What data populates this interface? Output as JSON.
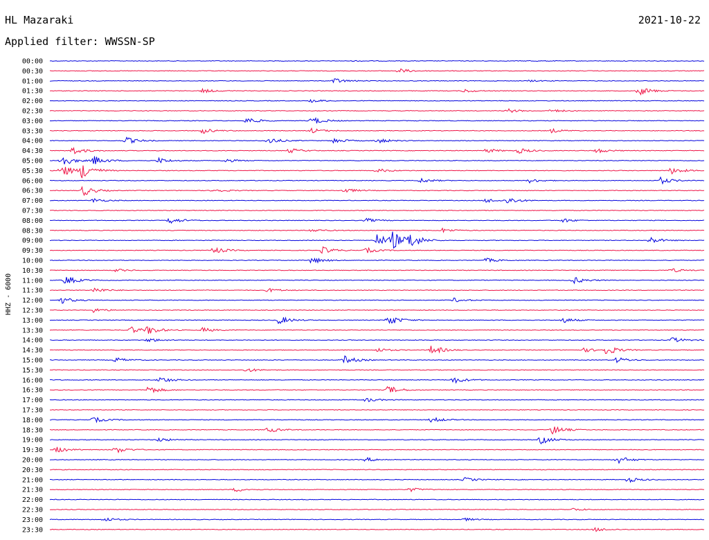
{
  "header": {
    "station": "HL Mazaraki",
    "date": "2021-10-22",
    "filter_label": "Applied filter: WWSSN-SP"
  },
  "colors": {
    "odd_trace": "#0000dd",
    "even_trace": "#ee1144",
    "text": "#000000"
  },
  "chart_data": {
    "type": "line",
    "title": "",
    "xlabel": "",
    "ylabel": "HHZ - 6000",
    "grid": false,
    "legend": "none",
    "row_interval_minutes": 30,
    "row_labels": [
      "00:00",
      "00:30",
      "01:00",
      "01:30",
      "02:00",
      "02:30",
      "03:00",
      "03:30",
      "04:00",
      "04:30",
      "05:00",
      "05:30",
      "06:00",
      "06:30",
      "07:00",
      "07:30",
      "08:00",
      "08:30",
      "09:00",
      "09:30",
      "10:00",
      "10:30",
      "11:00",
      "11:30",
      "12:00",
      "12:30",
      "13:00",
      "13:30",
      "14:00",
      "14:30",
      "15:00",
      "15:30",
      "16:00",
      "16:30",
      "17:00",
      "17:30",
      "18:00",
      "18:30",
      "19:00",
      "19:30",
      "20:00",
      "20:30",
      "21:00",
      "21:30",
      "22:00",
      "22:30",
      "23:00",
      "23:30"
    ],
    "series_colors": [
      "odd_trace",
      "even_trace"
    ],
    "events": [
      {
        "row": 0,
        "minute": 14,
        "amplitude": 0.6
      },
      {
        "row": 0,
        "minute": 22,
        "amplitude": 0.5
      },
      {
        "row": 1,
        "minute": 16,
        "amplitude": 3.5
      },
      {
        "row": 2,
        "minute": 13,
        "amplitude": 4
      },
      {
        "row": 2,
        "minute": 22,
        "amplitude": 1.2
      },
      {
        "row": 3,
        "minute": 7,
        "amplitude": 3
      },
      {
        "row": 3,
        "minute": 27,
        "amplitude": 7
      },
      {
        "row": 3,
        "minute": 19,
        "amplitude": 2.5
      },
      {
        "row": 4,
        "minute": 12,
        "amplitude": 2.5
      },
      {
        "row": 5,
        "minute": 21,
        "amplitude": 3
      },
      {
        "row": 5,
        "minute": 23,
        "amplitude": 2.5
      },
      {
        "row": 6,
        "minute": 9,
        "amplitude": 5
      },
      {
        "row": 6,
        "minute": 12,
        "amplitude": 6
      },
      {
        "row": 7,
        "minute": 7,
        "amplitude": 4
      },
      {
        "row": 7,
        "minute": 12,
        "amplitude": 3.5
      },
      {
        "row": 7,
        "minute": 23,
        "amplitude": 3
      },
      {
        "row": 8,
        "minute": 3.5,
        "amplitude": 5
      },
      {
        "row": 8,
        "minute": 10,
        "amplitude": 5
      },
      {
        "row": 8,
        "minute": 13,
        "amplitude": 4
      },
      {
        "row": 8,
        "minute": 15,
        "amplitude": 4
      },
      {
        "row": 9,
        "minute": 1,
        "amplitude": 6
      },
      {
        "row": 9,
        "minute": 11,
        "amplitude": 3.5
      },
      {
        "row": 9,
        "minute": 20,
        "amplitude": 3
      },
      {
        "row": 9,
        "minute": 21.5,
        "amplitude": 4
      },
      {
        "row": 9,
        "minute": 25,
        "amplitude": 4
      },
      {
        "row": 10,
        "minute": 0.5,
        "amplitude": 9
      },
      {
        "row": 10,
        "minute": 2,
        "amplitude": 7
      },
      {
        "row": 10,
        "minute": 5,
        "amplitude": 4
      },
      {
        "row": 10,
        "minute": 8,
        "amplitude": 3
      },
      {
        "row": 11,
        "minute": 0.5,
        "amplitude": 10
      },
      {
        "row": 11,
        "minute": 1.5,
        "amplitude": 12
      },
      {
        "row": 11,
        "minute": 15,
        "amplitude": 3
      },
      {
        "row": 11,
        "minute": 28.5,
        "amplitude": 5
      },
      {
        "row": 12,
        "minute": 17,
        "amplitude": 3.5
      },
      {
        "row": 12,
        "minute": 22,
        "amplitude": 3
      },
      {
        "row": 12,
        "minute": 28,
        "amplitude": 5
      },
      {
        "row": 13,
        "minute": 1.5,
        "amplitude": 8
      },
      {
        "row": 13,
        "minute": 7.5,
        "amplitude": 3
      },
      {
        "row": 13,
        "minute": 13.5,
        "amplitude": 3.5
      },
      {
        "row": 14,
        "minute": 2,
        "amplitude": 3
      },
      {
        "row": 14,
        "minute": 20,
        "amplitude": 3
      },
      {
        "row": 14,
        "minute": 21,
        "amplitude": 5
      },
      {
        "row": 16,
        "minute": 5.5,
        "amplitude": 5
      },
      {
        "row": 16,
        "minute": 14.5,
        "amplitude": 3
      },
      {
        "row": 16,
        "minute": 23.5,
        "amplitude": 3
      },
      {
        "row": 17,
        "minute": 12,
        "amplitude": 2.5
      },
      {
        "row": 17,
        "minute": 18,
        "amplitude": 3
      },
      {
        "row": 18,
        "minute": 15,
        "amplitude": 9
      },
      {
        "row": 18,
        "minute": 15.7,
        "amplitude": 12
      },
      {
        "row": 18,
        "minute": 16.5,
        "amplitude": 11
      },
      {
        "row": 18,
        "minute": 27.5,
        "amplitude": 5
      },
      {
        "row": 19,
        "minute": 7.5,
        "amplitude": 5
      },
      {
        "row": 19,
        "minute": 12.5,
        "amplitude": 5
      },
      {
        "row": 19,
        "minute": 14.5,
        "amplitude": 4
      },
      {
        "row": 20,
        "minute": 12,
        "amplitude": 5
      },
      {
        "row": 20,
        "minute": 20,
        "amplitude": 3
      },
      {
        "row": 21,
        "minute": 3,
        "amplitude": 2
      },
      {
        "row": 21,
        "minute": 28.5,
        "amplitude": 3
      },
      {
        "row": 22,
        "minute": 0.7,
        "amplitude": 7
      },
      {
        "row": 22,
        "minute": 24,
        "amplitude": 5
      },
      {
        "row": 23,
        "minute": 2,
        "amplitude": 4
      },
      {
        "row": 23,
        "minute": 10,
        "amplitude": 3
      },
      {
        "row": 24,
        "minute": 0.5,
        "amplitude": 5
      },
      {
        "row": 24,
        "minute": 18.5,
        "amplitude": 3
      },
      {
        "row": 25,
        "minute": 2,
        "amplitude": 3
      },
      {
        "row": 26,
        "minute": 10.5,
        "amplitude": 6
      },
      {
        "row": 26,
        "minute": 15.5,
        "amplitude": 8
      },
      {
        "row": 26,
        "minute": 23.5,
        "amplitude": 4
      },
      {
        "row": 27,
        "minute": 3.7,
        "amplitude": 5
      },
      {
        "row": 27,
        "minute": 4.5,
        "amplitude": 6
      },
      {
        "row": 27,
        "minute": 7,
        "amplitude": 3.5
      },
      {
        "row": 28,
        "minute": 4.5,
        "amplitude": 3
      },
      {
        "row": 28,
        "minute": 28.5,
        "amplitude": 4
      },
      {
        "row": 29,
        "minute": 15,
        "amplitude": 3
      },
      {
        "row": 29,
        "minute": 17.5,
        "amplitude": 7
      },
      {
        "row": 29,
        "minute": 24.5,
        "amplitude": 3
      },
      {
        "row": 29,
        "minute": 25.5,
        "amplitude": 7
      },
      {
        "row": 30,
        "minute": 3,
        "amplitude": 3.5
      },
      {
        "row": 30,
        "minute": 13.5,
        "amplitude": 6
      },
      {
        "row": 30,
        "minute": 26,
        "amplitude": 4
      },
      {
        "row": 31,
        "minute": 9,
        "amplitude": 3
      },
      {
        "row": 32,
        "minute": 5,
        "amplitude": 5
      },
      {
        "row": 32,
        "minute": 18.5,
        "amplitude": 5
      },
      {
        "row": 33,
        "minute": 4.5,
        "amplitude": 6
      },
      {
        "row": 33,
        "minute": 15.5,
        "amplitude": 6
      },
      {
        "row": 34,
        "minute": 14.5,
        "amplitude": 3
      },
      {
        "row": 36,
        "minute": 2,
        "amplitude": 4
      },
      {
        "row": 36,
        "minute": 17.5,
        "amplitude": 4
      },
      {
        "row": 37,
        "minute": 23,
        "amplitude": 7
      },
      {
        "row": 37,
        "minute": 10,
        "amplitude": 4
      },
      {
        "row": 38,
        "minute": 22.5,
        "amplitude": 6
      },
      {
        "row": 38,
        "minute": 5,
        "amplitude": 3
      },
      {
        "row": 39,
        "minute": 0.3,
        "amplitude": 4
      },
      {
        "row": 39,
        "minute": 3,
        "amplitude": 5
      },
      {
        "row": 40,
        "minute": 14.5,
        "amplitude": 3
      },
      {
        "row": 40,
        "minute": 26,
        "amplitude": 6
      },
      {
        "row": 42,
        "minute": 19,
        "amplitude": 3
      },
      {
        "row": 42,
        "minute": 26.5,
        "amplitude": 4
      },
      {
        "row": 43,
        "minute": 8.5,
        "amplitude": 3
      },
      {
        "row": 43,
        "minute": 16.5,
        "amplitude": 3
      },
      {
        "row": 45,
        "minute": 24,
        "amplitude": 2
      },
      {
        "row": 46,
        "minute": 2.5,
        "amplitude": 3
      },
      {
        "row": 46,
        "minute": 19,
        "amplitude": 2
      },
      {
        "row": 47,
        "minute": 25,
        "amplitude": 3
      }
    ]
  }
}
